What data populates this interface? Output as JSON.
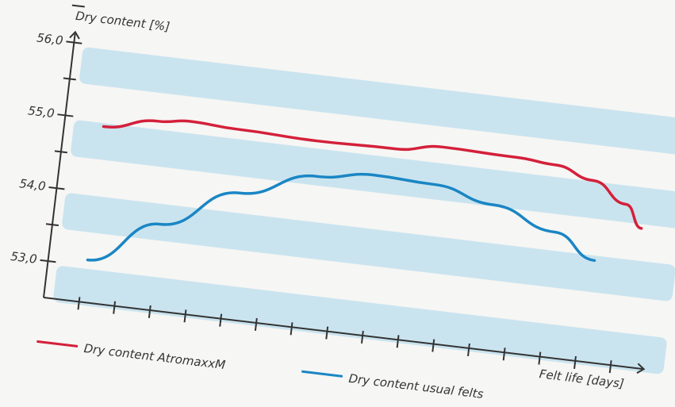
{
  "chart_data": {
    "type": "line",
    "y_label": "Dry content [%]",
    "x_label": "Felt life [days]",
    "xlim": [
      0,
      17
    ],
    "xticks": [
      1,
      2,
      3,
      4,
      5,
      6,
      7,
      8,
      9,
      10,
      11,
      12,
      13,
      14,
      15,
      16
    ],
    "ylim": [
      52.5,
      56.1
    ],
    "yticks": [
      {
        "value": 53,
        "label": "53,0"
      },
      {
        "value": 54,
        "label": "54,0"
      },
      {
        "value": 55,
        "label": "55,0"
      },
      {
        "value": 56,
        "label": "56,0"
      }
    ],
    "bands": true,
    "series": [
      {
        "name": "Dry content AtromaxxM",
        "color": "#d4203a",
        "x": [
          1.1,
          2.6,
          3.5,
          4.8,
          7.1,
          9.3,
          10.6,
          12.7,
          13.8,
          14.9,
          15.9,
          16.4
        ],
        "values": [
          54.91,
          55.07,
          55.12,
          55.09,
          55.06,
          55.08,
          55.18,
          55.16,
          55.12,
          54.97,
          54.7,
          54.4
        ]
      },
      {
        "name": "Dry content usual felts",
        "color": "#1a86c4",
        "x": [
          1.1,
          3.0,
          5.1,
          7.2,
          8.8,
          10.5,
          12.2,
          14.0,
          15.2
        ],
        "values": [
          53.08,
          53.68,
          54.23,
          54.58,
          54.69,
          54.66,
          54.48,
          54.21,
          53.89
        ]
      }
    ]
  }
}
